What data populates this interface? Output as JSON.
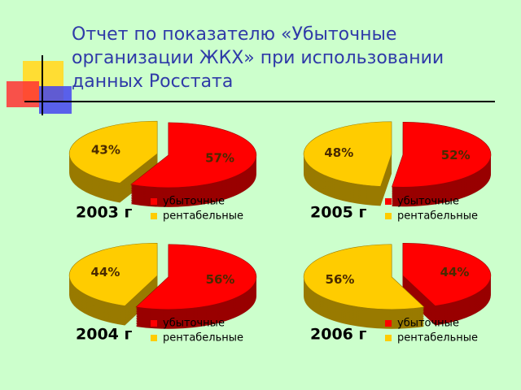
{
  "title": "Отчет по показателю «Убыточные организации ЖКХ» при использовании данных Росстата",
  "chart_data": [
    {
      "type": "pie",
      "title": "2003 г",
      "categories": [
        "убыточные",
        "рентабельные"
      ],
      "values": [
        57,
        43
      ],
      "value_labels": [
        "57%",
        "43%"
      ],
      "colors": [
        "#ff0000",
        "#ffcc00"
      ]
    },
    {
      "type": "pie",
      "title": "2005 г",
      "categories": [
        "убыточные",
        "рентабельные"
      ],
      "values": [
        52,
        48
      ],
      "value_labels": [
        "52%",
        "48%"
      ],
      "colors": [
        "#ff0000",
        "#ffcc00"
      ]
    },
    {
      "type": "pie",
      "title": "2004 г",
      "categories": [
        "убыточные",
        "рентабельные"
      ],
      "values": [
        56,
        44
      ],
      "value_labels": [
        "56%",
        "44%"
      ],
      "colors": [
        "#ff0000",
        "#ffcc00"
      ]
    },
    {
      "type": "pie",
      "title": "2006 г",
      "categories": [
        "убыточные",
        "рентабельные"
      ],
      "values": [
        44,
        56
      ],
      "value_labels": [
        "44%",
        "56%"
      ],
      "colors": [
        "#ff0000",
        "#ffcc00"
      ]
    }
  ]
}
